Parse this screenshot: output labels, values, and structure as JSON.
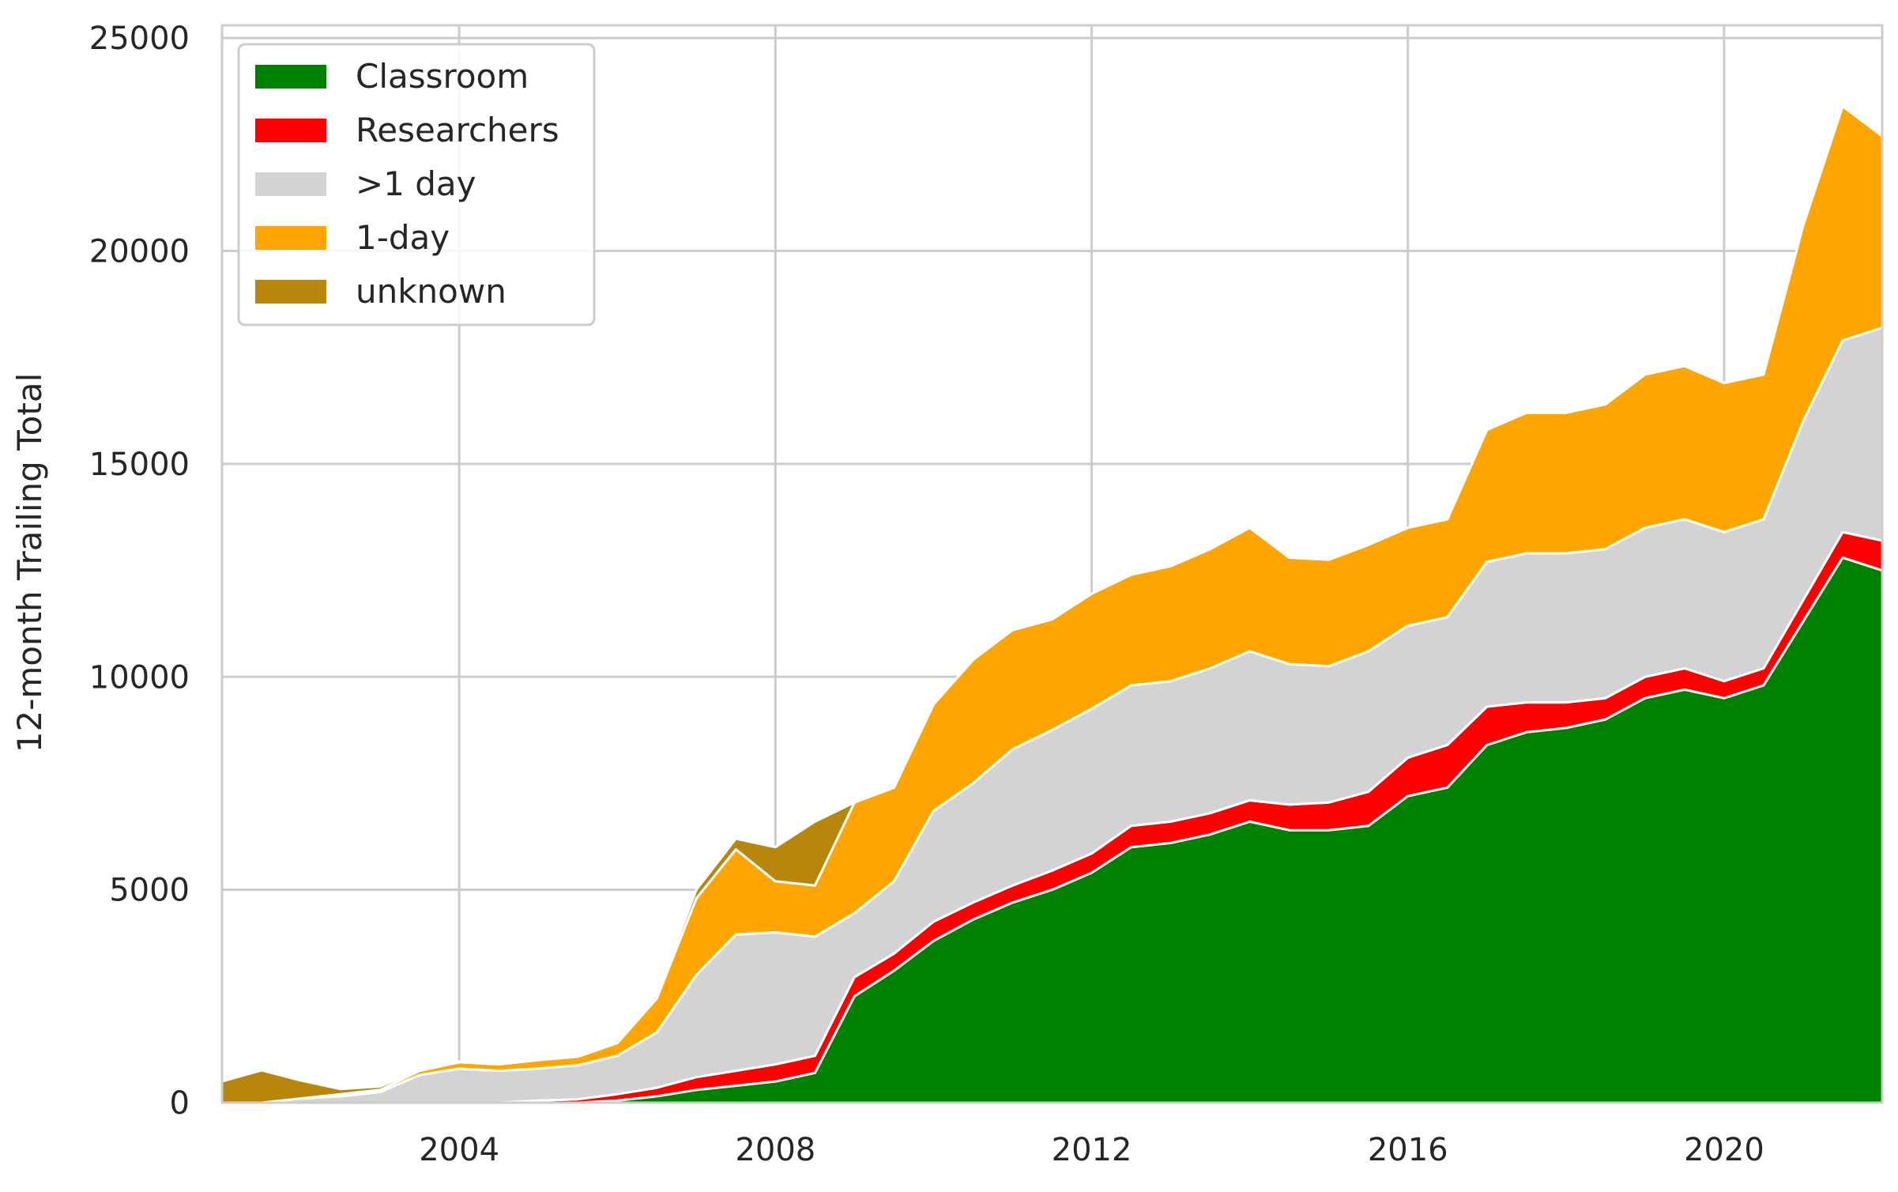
{
  "chart_data": {
    "type": "area",
    "stacked": true,
    "title": "",
    "xlabel": "",
    "ylabel": "12-month Trailing Total",
    "xlim": [
      2001.0,
      2022.0
    ],
    "ylim": [
      0,
      25300
    ],
    "x_ticks": [
      2004,
      2008,
      2012,
      2016,
      2020
    ],
    "x_tick_labels": [
      "2004",
      "2008",
      "2012",
      "2016",
      "2020"
    ],
    "y_ticks": [
      0,
      5000,
      10000,
      15000,
      20000,
      25000
    ],
    "y_tick_labels": [
      "0",
      "5000",
      "10000",
      "15000",
      "20000",
      "25000"
    ],
    "grid": true,
    "legend_position": "top-left",
    "x": [
      2001.0,
      2001.5,
      2002.0,
      2002.5,
      2003.0,
      2003.5,
      2004.0,
      2004.5,
      2005.0,
      2005.5,
      2006.0,
      2006.5,
      2007.0,
      2007.5,
      2008.0,
      2008.5,
      2009.0,
      2009.5,
      2010.0,
      2010.5,
      2011.0,
      2011.5,
      2012.0,
      2012.5,
      2013.0,
      2013.5,
      2014.0,
      2014.5,
      2015.0,
      2015.5,
      2016.0,
      2016.5,
      2017.0,
      2017.5,
      2018.0,
      2018.5,
      2019.0,
      2019.5,
      2020.0,
      2020.5,
      2021.0,
      2021.5,
      2022.0
    ],
    "series": [
      {
        "name": "Classroom",
        "color": "#008000",
        "values": [
          0,
          0,
          0,
          0,
          0,
          0,
          0,
          0,
          0,
          0,
          50,
          150,
          300,
          400,
          500,
          700,
          2500,
          3100,
          3800,
          4300,
          4700,
          5000,
          5400,
          6000,
          6100,
          6300,
          6600,
          6400,
          6400,
          6500,
          7200,
          7400,
          8400,
          8700,
          8800,
          9000,
          9500,
          9700,
          9500,
          9800,
          11300,
          12800,
          12500
        ]
      },
      {
        "name": "Researchers",
        "color": "#ff0000",
        "values": [
          0,
          0,
          0,
          0,
          0,
          0,
          0,
          0,
          50,
          80,
          150,
          200,
          300,
          350,
          400,
          400,
          450,
          400,
          450,
          400,
          400,
          450,
          450,
          500,
          500,
          500,
          500,
          600,
          650,
          800,
          900,
          1000,
          900,
          700,
          600,
          500,
          500,
          500,
          400,
          400,
          500,
          600,
          700
        ]
      },
      {
        "name": ">1 day",
        "color": "#d3d3d3",
        "values": [
          0,
          0,
          100,
          150,
          250,
          650,
          800,
          750,
          750,
          800,
          900,
          1300,
          2400,
          3200,
          3100,
          2800,
          1500,
          1700,
          2600,
          2800,
          3200,
          3300,
          3400,
          3300,
          3300,
          3400,
          3500,
          3300,
          3200,
          3300,
          3100,
          3000,
          3400,
          3500,
          3500,
          3500,
          3500,
          3500,
          3500,
          3500,
          4200,
          4500,
          5000
        ]
      },
      {
        "name": "1-day",
        "color": "#ffa500",
        "values": [
          0,
          0,
          0,
          50,
          50,
          100,
          150,
          150,
          200,
          200,
          300,
          800,
          1800,
          2000,
          1200,
          1200,
          2600,
          2200,
          2500,
          2900,
          2800,
          2600,
          2700,
          2600,
          2700,
          2800,
          2900,
          2500,
          2500,
          2500,
          2300,
          2300,
          3100,
          3300,
          3300,
          3400,
          3600,
          3600,
          3500,
          3400,
          4600,
          5500,
          4500
        ]
      },
      {
        "name": "unknown",
        "color": "#b8860b",
        "values": [
          500,
          760,
          420,
          120,
          80,
          30,
          20,
          0,
          0,
          0,
          0,
          100,
          200,
          250,
          800,
          1500,
          0,
          0,
          0,
          0,
          0,
          0,
          0,
          0,
          0,
          0,
          0,
          0,
          0,
          0,
          0,
          0,
          0,
          0,
          0,
          0,
          0,
          0,
          0,
          0,
          0,
          0,
          0
        ]
      }
    ]
  }
}
